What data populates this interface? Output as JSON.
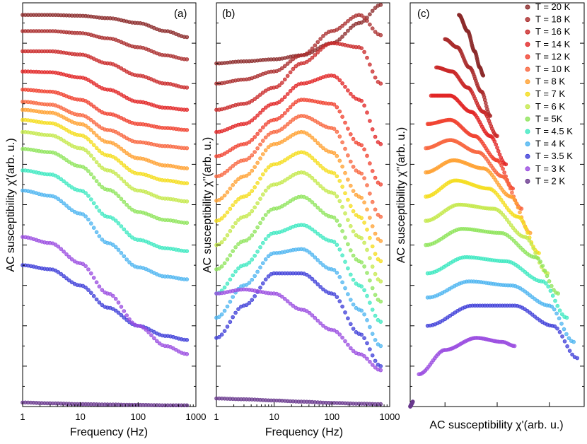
{
  "legend": {
    "entries": [
      {
        "label": "T = 20 K",
        "color": "#8B2A2A"
      },
      {
        "label": "T = 18 K",
        "color": "#A92C2C"
      },
      {
        "label": "T = 16 K",
        "color": "#C92828"
      },
      {
        "label": "T = 14 K",
        "color": "#E12424"
      },
      {
        "label": "T = 12 K",
        "color": "#F0402E"
      },
      {
        "label": "T = 10 K",
        "color": "#F8643C"
      },
      {
        "label": "T = 8 K",
        "color": "#FFA030"
      },
      {
        "label": "T = 7 K",
        "color": "#F4DC1A"
      },
      {
        "label": "T = 6 K",
        "color": "#C4E84A"
      },
      {
        "label": "T = 5K",
        "color": "#8EE45A"
      },
      {
        "label": "T = 4.5 K",
        "color": "#3CE8C0"
      },
      {
        "label": "T = 4 K",
        "color": "#4CB4F0"
      },
      {
        "label": "T = 3.5 K",
        "color": "#3E3ED8"
      },
      {
        "label": "T = 3 K",
        "color": "#9A4CE0"
      },
      {
        "label": "T = 2 K",
        "color": "#6A3A8E"
      }
    ]
  },
  "chart_data": [
    {
      "panel_label": "(a)",
      "type": "scatter",
      "xlabel": "Frequency (Hz)",
      "ylabel": "AC susceptibility χ'(arb. u.)",
      "xscale": "log",
      "xlim": [
        1,
        1000
      ],
      "ylim": [
        0,
        1
      ],
      "x_ticks": [
        "1",
        "10",
        "100",
        "1000"
      ],
      "series": [
        {
          "name": "T = 20 K",
          "x": [
            1,
            3,
            10,
            30,
            100,
            300,
            700
          ],
          "y": [
            0.97,
            0.97,
            0.968,
            0.962,
            0.95,
            0.93,
            0.915
          ]
        },
        {
          "name": "T = 18 K",
          "x": [
            1,
            3,
            10,
            30,
            100,
            300,
            700
          ],
          "y": [
            0.93,
            0.93,
            0.925,
            0.912,
            0.89,
            0.87,
            0.86
          ]
        },
        {
          "name": "T = 16 K",
          "x": [
            1,
            3,
            10,
            30,
            100,
            300,
            700
          ],
          "y": [
            0.88,
            0.88,
            0.872,
            0.85,
            0.82,
            0.8,
            0.79
          ]
        },
        {
          "name": "T = 14 K",
          "x": [
            1,
            3,
            10,
            30,
            100,
            300,
            700
          ],
          "y": [
            0.83,
            0.828,
            0.815,
            0.785,
            0.755,
            0.74,
            0.735
          ]
        },
        {
          "name": "T = 12 K",
          "x": [
            1,
            3,
            10,
            30,
            100,
            300,
            700
          ],
          "y": [
            0.785,
            0.78,
            0.76,
            0.725,
            0.7,
            0.69,
            0.685
          ]
        },
        {
          "name": "T = 10 K",
          "x": [
            1,
            3,
            10,
            30,
            100,
            300,
            700
          ],
          "y": [
            0.755,
            0.748,
            0.722,
            0.685,
            0.655,
            0.645,
            0.64
          ]
        },
        {
          "name": "T = 8 K",
          "x": [
            1,
            3,
            10,
            30,
            100,
            300,
            700
          ],
          "y": [
            0.735,
            0.728,
            0.7,
            0.655,
            0.615,
            0.597,
            0.59
          ]
        },
        {
          "name": "T = 7 K",
          "x": [
            1,
            3,
            10,
            30,
            100,
            300,
            700
          ],
          "y": [
            0.71,
            0.702,
            0.672,
            0.622,
            0.577,
            0.56,
            0.553
          ]
        },
        {
          "name": "T = 6 K",
          "x": [
            1,
            3,
            10,
            30,
            100,
            300,
            700
          ],
          "y": [
            0.68,
            0.672,
            0.64,
            0.585,
            0.535,
            0.515,
            0.508
          ]
        },
        {
          "name": "T = 5K",
          "x": [
            1,
            3,
            10,
            30,
            100,
            300,
            700
          ],
          "y": [
            0.638,
            0.63,
            0.595,
            0.537,
            0.482,
            0.462,
            0.455
          ]
        },
        {
          "name": "T = 4.5 K",
          "x": [
            1,
            3,
            10,
            30,
            100,
            300,
            700
          ],
          "y": [
            0.585,
            0.575,
            0.535,
            0.47,
            0.413,
            0.392,
            0.385
          ]
        },
        {
          "name": "T = 4 K",
          "x": [
            1,
            3,
            10,
            30,
            100,
            300,
            700
          ],
          "y": [
            0.535,
            0.522,
            0.478,
            0.405,
            0.345,
            0.322,
            0.315
          ]
        },
        {
          "name": "T = 3.5 K",
          "x": [
            1,
            3,
            10,
            30,
            100,
            300,
            700
          ],
          "y": [
            0.35,
            0.34,
            0.3,
            0.245,
            0.2,
            0.175,
            0.165
          ]
        },
        {
          "name": "T = 3 K",
          "x": [
            1,
            3,
            10,
            30,
            100,
            300,
            700
          ],
          "y": [
            0.42,
            0.405,
            0.355,
            0.28,
            0.2,
            0.15,
            0.13
          ]
        },
        {
          "name": "T = 2 K",
          "x": [
            1,
            3,
            10,
            30,
            100,
            300,
            700
          ],
          "y": [
            0.01,
            0.008,
            0.006,
            0.005,
            0.004,
            0.003,
            0.003
          ]
        }
      ]
    },
    {
      "panel_label": "(b)",
      "type": "scatter",
      "xlabel": "Frequency (Hz)",
      "ylabel": "AC susceptibility χ''(arb. u.)",
      "xscale": "log",
      "xlim": [
        1,
        1000
      ],
      "ylim": [
        0,
        1
      ],
      "x_ticks": [
        "1",
        "10",
        "100",
        "1000"
      ],
      "series": [
        {
          "name": "T = 20 K",
          "x": [
            1,
            3,
            10,
            30,
            100,
            300,
            700
          ],
          "y": [
            0.85,
            0.855,
            0.86,
            0.87,
            0.9,
            0.95,
            0.995
          ]
        },
        {
          "name": "T = 18 K",
          "x": [
            1,
            3,
            10,
            30,
            100,
            300,
            700
          ],
          "y": [
            0.8,
            0.81,
            0.83,
            0.87,
            0.93,
            0.97,
            0.92
          ]
        },
        {
          "name": "T = 16 K",
          "x": [
            1,
            3,
            10,
            30,
            100,
            300,
            700
          ],
          "y": [
            0.735,
            0.75,
            0.79,
            0.85,
            0.9,
            0.89,
            0.8
          ]
        },
        {
          "name": "T = 14 K",
          "x": [
            1,
            3,
            10,
            30,
            100,
            300,
            700
          ],
          "y": [
            0.68,
            0.7,
            0.75,
            0.8,
            0.82,
            0.76,
            0.65
          ]
        },
        {
          "name": "T = 12 K",
          "x": [
            1,
            3,
            10,
            30,
            100,
            300,
            700
          ],
          "y": [
            0.62,
            0.65,
            0.71,
            0.76,
            0.75,
            0.65,
            0.55
          ]
        },
        {
          "name": "T = 10 K",
          "x": [
            1,
            3,
            10,
            30,
            100,
            300,
            700
          ],
          "y": [
            0.57,
            0.61,
            0.68,
            0.72,
            0.69,
            0.58,
            0.47
          ]
        },
        {
          "name": "T = 8 K",
          "x": [
            1,
            3,
            10,
            30,
            100,
            300,
            700
          ],
          "y": [
            0.51,
            0.57,
            0.65,
            0.68,
            0.63,
            0.52,
            0.41
          ]
        },
        {
          "name": "T = 7 K",
          "x": [
            1,
            3,
            10,
            30,
            100,
            300,
            700
          ],
          "y": [
            0.46,
            0.52,
            0.6,
            0.63,
            0.58,
            0.47,
            0.36
          ]
        },
        {
          "name": "T = 6 K",
          "x": [
            1,
            3,
            10,
            30,
            100,
            300,
            700
          ],
          "y": [
            0.4,
            0.47,
            0.55,
            0.58,
            0.53,
            0.42,
            0.31
          ]
        },
        {
          "name": "T = 5K",
          "x": [
            1,
            3,
            10,
            30,
            100,
            300,
            700
          ],
          "y": [
            0.34,
            0.41,
            0.49,
            0.52,
            0.47,
            0.36,
            0.26
          ]
        },
        {
          "name": "T = 4.5 K",
          "x": [
            1,
            3,
            10,
            30,
            100,
            300,
            700
          ],
          "y": [
            0.28,
            0.35,
            0.43,
            0.45,
            0.41,
            0.3,
            0.21
          ]
        },
        {
          "name": "T = 4 K",
          "x": [
            1,
            3,
            10,
            30,
            100,
            300,
            700
          ],
          "y": [
            0.22,
            0.3,
            0.38,
            0.39,
            0.34,
            0.24,
            0.15
          ]
        },
        {
          "name": "T = 3.5 K",
          "x": [
            1,
            3,
            10,
            30,
            100,
            300,
            700
          ],
          "y": [
            0.17,
            0.25,
            0.33,
            0.33,
            0.28,
            0.18,
            0.1
          ]
        },
        {
          "name": "T = 3 K",
          "x": [
            1,
            3,
            10,
            30,
            100,
            300,
            700
          ],
          "y": [
            0.28,
            0.29,
            0.28,
            0.24,
            0.19,
            0.13,
            0.09
          ]
        },
        {
          "name": "T = 2 K",
          "x": [
            1,
            3,
            10,
            30,
            100,
            300,
            700
          ],
          "y": [
            0.02,
            0.018,
            0.015,
            0.012,
            0.009,
            0.007,
            0.006
          ]
        }
      ]
    },
    {
      "panel_label": "(c)",
      "type": "scatter",
      "xlabel": "AC susceptibility χ'(arb. u.)",
      "ylabel": "AC susceptibility χ''(arb. u.)",
      "xlim": [
        0,
        1
      ],
      "ylim": [
        0,
        1
      ],
      "series": [
        {
          "name": "T = 20 K",
          "x": [
            0.28,
            0.33,
            0.37,
            0.4,
            0.42
          ],
          "y": [
            0.97,
            0.93,
            0.88,
            0.84,
            0.82
          ]
        },
        {
          "name": "T = 18 K",
          "x": [
            0.2,
            0.27,
            0.34,
            0.41,
            0.46
          ],
          "y": [
            0.91,
            0.89,
            0.84,
            0.78,
            0.72
          ]
        },
        {
          "name": "T = 16 K",
          "x": [
            0.15,
            0.24,
            0.33,
            0.42,
            0.5
          ],
          "y": [
            0.84,
            0.83,
            0.79,
            0.73,
            0.67
          ]
        },
        {
          "name": "T = 14 K",
          "x": [
            0.12,
            0.23,
            0.35,
            0.46,
            0.55
          ],
          "y": [
            0.77,
            0.77,
            0.73,
            0.67,
            0.6
          ]
        },
        {
          "name": "T = 12 K",
          "x": [
            0.1,
            0.23,
            0.37,
            0.5,
            0.59
          ],
          "y": [
            0.7,
            0.71,
            0.67,
            0.61,
            0.54
          ]
        },
        {
          "name": "T = 10 K",
          "x": [
            0.09,
            0.23,
            0.39,
            0.53,
            0.64
          ],
          "y": [
            0.64,
            0.66,
            0.63,
            0.57,
            0.49
          ]
        },
        {
          "name": "T = 8 K",
          "x": [
            0.09,
            0.25,
            0.42,
            0.58,
            0.69
          ],
          "y": [
            0.58,
            0.61,
            0.59,
            0.52,
            0.43
          ]
        },
        {
          "name": "T = 7 K",
          "x": [
            0.09,
            0.26,
            0.45,
            0.62,
            0.74
          ],
          "y": [
            0.52,
            0.56,
            0.54,
            0.47,
            0.38
          ]
        },
        {
          "name": "T = 6 K",
          "x": [
            0.09,
            0.28,
            0.48,
            0.66,
            0.79
          ],
          "y": [
            0.46,
            0.5,
            0.49,
            0.42,
            0.33
          ]
        },
        {
          "name": "T = 5K",
          "x": [
            0.09,
            0.3,
            0.52,
            0.72,
            0.85
          ],
          "y": [
            0.4,
            0.44,
            0.43,
            0.37,
            0.28
          ]
        },
        {
          "name": "T = 4.5 K",
          "x": [
            0.1,
            0.32,
            0.55,
            0.76,
            0.9
          ],
          "y": [
            0.33,
            0.37,
            0.36,
            0.31,
            0.22
          ]
        },
        {
          "name": "T = 4 K",
          "x": [
            0.1,
            0.34,
            0.58,
            0.8,
            0.94
          ],
          "y": [
            0.27,
            0.31,
            0.3,
            0.25,
            0.16
          ]
        },
        {
          "name": "T = 3.5 K",
          "x": [
            0.1,
            0.36,
            0.6,
            0.82,
            0.96
          ],
          "y": [
            0.2,
            0.25,
            0.25,
            0.2,
            0.12
          ]
        },
        {
          "name": "T = 3 K",
          "x": [
            0.05,
            0.2,
            0.38,
            0.53,
            0.6
          ],
          "y": [
            0.08,
            0.14,
            0.17,
            0.16,
            0.15
          ]
        },
        {
          "name": "T = 2 K",
          "x": [
            0.0,
            0.005,
            0.01,
            0.015
          ],
          "y": [
            0.0,
            0.004,
            0.008,
            0.012
          ]
        }
      ]
    }
  ]
}
